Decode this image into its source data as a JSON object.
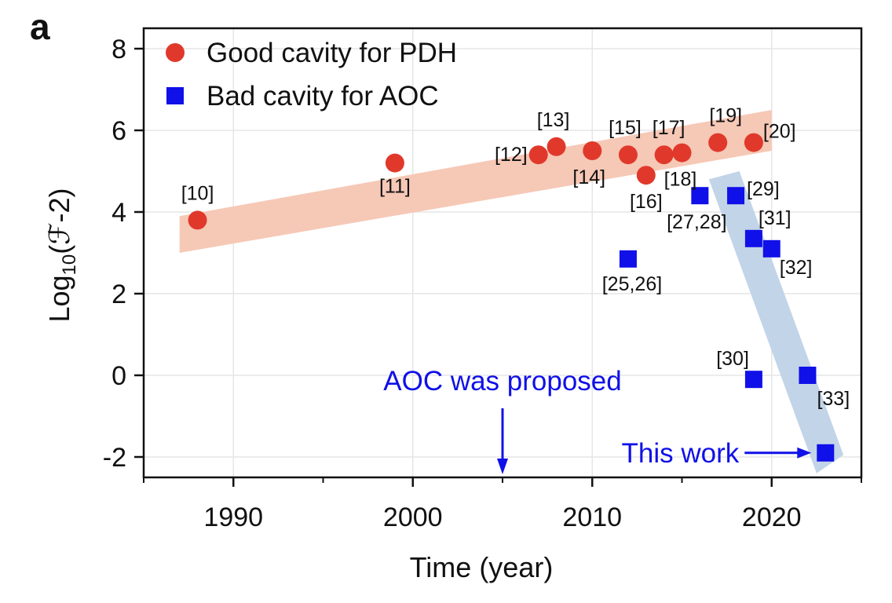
{
  "panel_label": "a",
  "chart_data": {
    "type": "scatter",
    "xlabel": "Time (year)",
    "ylabel_main": "Log",
    "ylabel_sub": "10",
    "ylabel_rest": "(ℱ-2)",
    "xlim": [
      1985,
      2025
    ],
    "ylim": [
      -2.5,
      8.5
    ],
    "x_ticks": [
      1990,
      2000,
      2010,
      2020
    ],
    "x_tick_labels": [
      "1990",
      "2000",
      "2010",
      "2020"
    ],
    "y_ticks": [
      -2,
      0,
      2,
      4,
      6,
      8
    ],
    "y_tick_labels": [
      "-2",
      "0",
      "2",
      "4",
      "6",
      "8"
    ],
    "grid": true,
    "legend_position": "top-left",
    "colors": {
      "good": "#e0392b",
      "bad": "#1010e8",
      "good_band": "#f6c8b6",
      "bad_band": "#c2d4e8",
      "annotation": "#1010e8"
    },
    "series": [
      {
        "name": "Good cavity for PDH",
        "marker": "circle",
        "points": [
          {
            "x": 1988,
            "y": 3.8,
            "label": "[10]"
          },
          {
            "x": 1999,
            "y": 5.2,
            "label": "[11]"
          },
          {
            "x": 2007,
            "y": 5.4,
            "label": "[12]"
          },
          {
            "x": 2008,
            "y": 5.6,
            "label": "[13]"
          },
          {
            "x": 2010,
            "y": 5.5,
            "label": "[14]"
          },
          {
            "x": 2012,
            "y": 5.4,
            "label": "[15]"
          },
          {
            "x": 2013,
            "y": 4.9,
            "label": "[16]"
          },
          {
            "x": 2014,
            "y": 5.4,
            "label": "[17]"
          },
          {
            "x": 2015,
            "y": 5.45,
            "label": "[18]"
          },
          {
            "x": 2017,
            "y": 5.7,
            "label": "[19]"
          },
          {
            "x": 2019,
            "y": 5.7,
            "label": "[20]"
          }
        ]
      },
      {
        "name": "Bad cavity for AOC",
        "marker": "square",
        "points": [
          {
            "x": 2012,
            "y": 2.85,
            "label": "[25,26]"
          },
          {
            "x": 2016,
            "y": 4.4,
            "label": "[27,28]"
          },
          {
            "x": 2018,
            "y": 4.4,
            "label": "[29]"
          },
          {
            "x": 2019,
            "y": 3.35,
            "label": "[31]"
          },
          {
            "x": 2020,
            "y": 3.1,
            "label": "[32]"
          },
          {
            "x": 2019,
            "y": -0.1,
            "label": "[30]"
          },
          {
            "x": 2022,
            "y": 0.0,
            "label": "[33]"
          },
          {
            "x": 2023,
            "y": -1.9,
            "label": ""
          }
        ]
      }
    ],
    "annotations": {
      "aoc_proposed": {
        "text": "AOC was proposed",
        "x": 2005
      },
      "this_work": {
        "text": "This work"
      }
    }
  }
}
